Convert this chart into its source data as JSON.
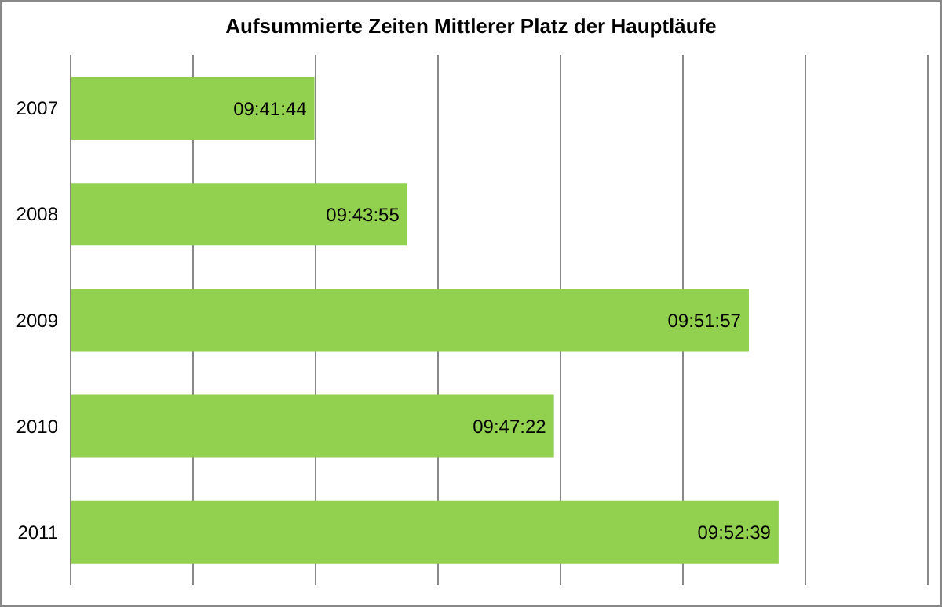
{
  "chart_data": {
    "type": "bar",
    "orientation": "horizontal",
    "title": "Aufsummierte Zeiten Mittlerer Platz der Hauptläufe",
    "categories": [
      "2007",
      "2008",
      "2009",
      "2010",
      "2011"
    ],
    "values": [
      9.69556,
      9.73194,
      9.86583,
      9.78944,
      9.8775
    ],
    "value_labels": [
      "09:41:44",
      "09:43:55",
      "09:51:57",
      "09:47:22",
      "09:52:39"
    ],
    "color": "#92d050",
    "xlim": [
      9.6,
      9.936
    ],
    "tick_labels": "y",
    "grid": "x"
  }
}
